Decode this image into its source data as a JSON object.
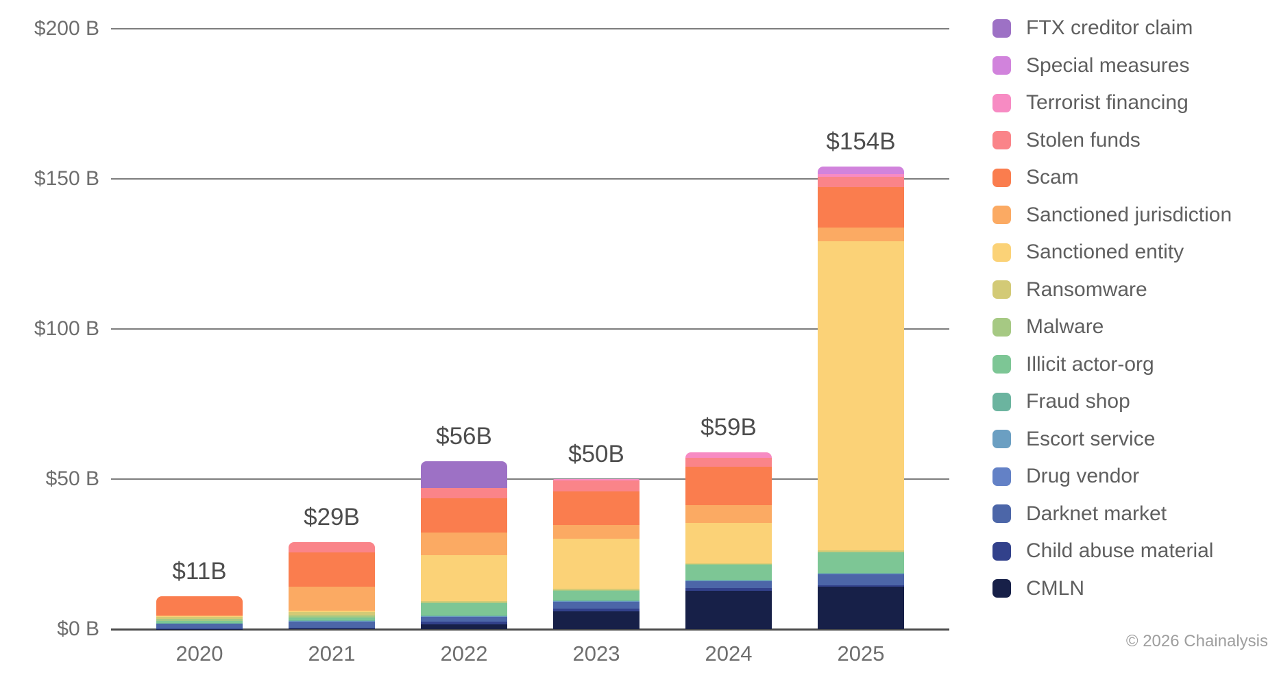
{
  "chart_data": {
    "type": "bar",
    "stacked": true,
    "orientation": "vertical",
    "categories": [
      "2020",
      "2021",
      "2022",
      "2023",
      "2024",
      "2025"
    ],
    "totals": [
      "$11B",
      "$29B",
      "$56B",
      "$50B",
      "$59B",
      "$154B"
    ],
    "unit": "billion USD",
    "ylabel": "",
    "xlabel": "",
    "ylim": [
      0,
      200
    ],
    "y_ticks": [
      "$0 B",
      "$50 B",
      "$100 B",
      "$150 B",
      "$200 B"
    ],
    "y_tick_values": [
      0,
      50,
      100,
      150,
      200
    ],
    "grid": true,
    "legend_position": "right",
    "series": [
      {
        "name": "CMLN",
        "color": "#172048",
        "values": [
          0.1,
          0.2,
          1.6,
          6.0,
          12.8,
          14.2
        ]
      },
      {
        "name": "Child abuse material",
        "color": "#32418b",
        "values": [
          0.1,
          0.2,
          0.9,
          0.8,
          0.9,
          0.4
        ]
      },
      {
        "name": "Darknet market",
        "color": "#4c66a8",
        "values": [
          1.6,
          2.2,
          1.6,
          2.4,
          2.3,
          3.7
        ]
      },
      {
        "name": "Drug vendor",
        "color": "#6381c6",
        "values": [
          0.15,
          0.2,
          0.2,
          0.2,
          0.2,
          0.3
        ]
      },
      {
        "name": "Escort service",
        "color": "#6b9fc2",
        "values": [
          0.05,
          0.05,
          0.05,
          0.05,
          0.05,
          0.05
        ]
      },
      {
        "name": "Fraud shop",
        "color": "#6bb49f",
        "values": [
          0.1,
          0.15,
          0.15,
          0.15,
          0.15,
          0.15
        ]
      },
      {
        "name": "Illicit actor-org",
        "color": "#7dc695",
        "values": [
          0.7,
          0.8,
          4.2,
          3.3,
          5.0,
          6.9
        ]
      },
      {
        "name": "Malware",
        "color": "#a6c983",
        "values": [
          0.6,
          0.8,
          0.3,
          0.2,
          0.2,
          0.2
        ]
      },
      {
        "name": "Ransomware",
        "color": "#d3ca76",
        "values": [
          0.9,
          1.2,
          0.3,
          0.3,
          0.3,
          0.3
        ]
      },
      {
        "name": "Sanctioned entity",
        "color": "#fbd277",
        "values": [
          0.1,
          0.3,
          15.4,
          16.8,
          13.4,
          103.0
        ]
      },
      {
        "name": "Sanctioned jurisdiction",
        "color": "#fbaa63",
        "values": [
          0.1,
          8.0,
          7.5,
          4.6,
          6.1,
          4.6
        ]
      },
      {
        "name": "Scam",
        "color": "#fa7d4e",
        "values": [
          6.5,
          11.4,
          11.5,
          11.2,
          12.6,
          13.4
        ]
      },
      {
        "name": "Stolen funds",
        "color": "#fa8489",
        "values": [
          0,
          3.5,
          3.4,
          3.6,
          3.1,
          3.4
        ]
      },
      {
        "name": "Terrorist financing",
        "color": "#f78bc3",
        "values": [
          0,
          0,
          0,
          0.4,
          1.9,
          1.1
        ]
      },
      {
        "name": "Special measures",
        "color": "#d183dc",
        "values": [
          0,
          0,
          0,
          0,
          0,
          2.3
        ]
      },
      {
        "name": "FTX creditor claim",
        "color": "#9d71c5",
        "values": [
          0,
          0,
          8.9,
          0,
          0,
          0
        ]
      }
    ]
  },
  "footer": {
    "copyright": "© 2026 Chainalysis"
  }
}
